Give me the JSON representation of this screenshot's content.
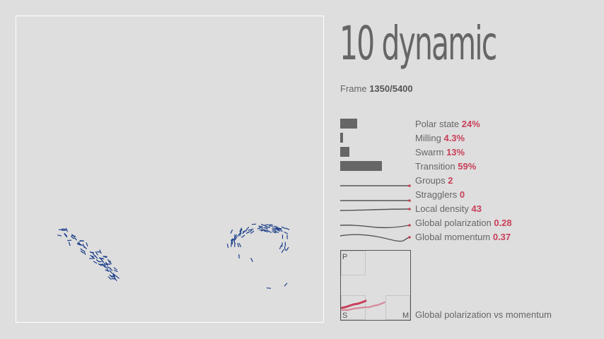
{
  "title": "10 dynamic",
  "frame": {
    "label": "Frame",
    "value": "1350/5400"
  },
  "states": [
    {
      "label": "Polar state",
      "value": "24%",
      "fraction": 0.24
    },
    {
      "label": "Milling",
      "value": "4.3%",
      "fraction": 0.043
    },
    {
      "label": "Swarm",
      "value": "13%",
      "fraction": 0.13
    },
    {
      "label": "Transition",
      "value": "59%",
      "fraction": 0.59
    }
  ],
  "metrics": [
    {
      "label": "Groups",
      "value": "2"
    },
    {
      "label": "Stragglers",
      "value": "0"
    },
    {
      "label": "Local density",
      "value": "43"
    },
    {
      "label": "Global polarization",
      "value": "0.28"
    },
    {
      "label": "Global momentum",
      "value": "0.37"
    }
  ],
  "phase_plot": {
    "caption": "Global polarization vs momentum",
    "label_polar": "P",
    "label_swarm": "S",
    "label_milling": "M"
  },
  "colors": {
    "background": "#dedede",
    "agent": "#1c3f8a",
    "accent": "#c8405a",
    "bar": "#666666"
  }
}
